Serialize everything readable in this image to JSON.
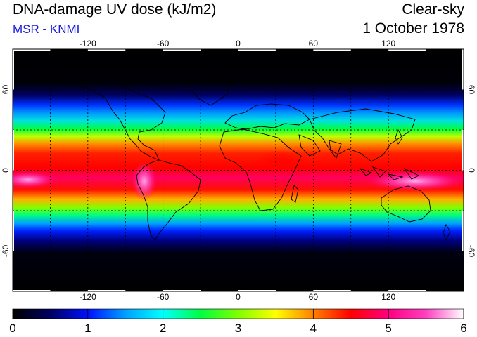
{
  "header": {
    "title": "DNA-damage UV dose (kJ/m2)",
    "source": "MSR - KNMI",
    "sky": "Clear-sky",
    "date": "1 October 1978"
  },
  "map": {
    "projection": "equirectangular",
    "lon_ticks": [
      "-120",
      "-60",
      "0",
      "60",
      "120"
    ],
    "lat_ticks": [
      "60",
      "0",
      "-60"
    ],
    "gridlines": "dashed",
    "coastlines": true
  },
  "colorbar": {
    "min": 0,
    "max": 6,
    "labels": [
      "0",
      "1",
      "2",
      "3",
      "4",
      "5",
      "6"
    ],
    "colors": [
      "#000000",
      "#000060",
      "#0010ff",
      "#00a0ff",
      "#00ffff",
      "#00ff40",
      "#80ff00",
      "#ffff00",
      "#ff8000",
      "#ff0000",
      "#ff0080",
      "#ff40c0",
      "#ffffff"
    ]
  }
}
